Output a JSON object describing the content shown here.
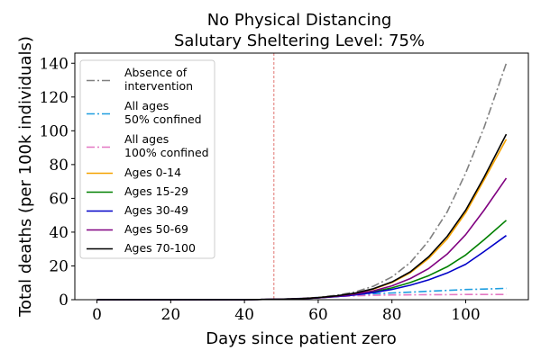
{
  "chart_data": {
    "type": "line",
    "title": [
      "No Physical Distancing",
      "Salutary Sheltering Level: 75%"
    ],
    "xlabel": "Days since patient zero",
    "ylabel": "Total deaths (per 100k individuals)",
    "xlim": [
      -6,
      117
    ],
    "ylim": [
      0,
      146
    ],
    "xticks": [
      0,
      20,
      40,
      60,
      80,
      100
    ],
    "yticks": [
      0,
      20,
      40,
      60,
      80,
      100,
      120,
      140
    ],
    "intervention_day": 48,
    "legend_position": "upper-left",
    "grid": false,
    "x": [
      0,
      10,
      20,
      30,
      40,
      50,
      55,
      60,
      65,
      70,
      75,
      80,
      85,
      90,
      95,
      100,
      105,
      111
    ],
    "series": [
      {
        "name": [
          "Absence of",
          "intervention"
        ],
        "color": "#808080",
        "style": "dashdot",
        "values": [
          0,
          0,
          0,
          0,
          0,
          0.3,
          0.7,
          1.4,
          2.6,
          4.6,
          8,
          13.5,
          22,
          35,
          52,
          75,
          102,
          140
        ]
      },
      {
        "name": [
          "All ages",
          "50% confined"
        ],
        "color": "#1f9ee0",
        "style": "dashdot",
        "values": [
          0,
          0,
          0,
          0,
          0,
          0.3,
          0.7,
          1.3,
          2.1,
          2.9,
          3.5,
          4,
          4.5,
          5,
          5.5,
          6,
          6.3,
          6.7
        ]
      },
      {
        "name": [
          "All ages",
          "100% confined"
        ],
        "color": "#e377c2",
        "style": "dashdot",
        "values": [
          0,
          0,
          0,
          0,
          0,
          0.3,
          0.7,
          1.2,
          1.8,
          2.3,
          2.6,
          2.8,
          2.9,
          3,
          3,
          3.1,
          3.1,
          3.1
        ]
      },
      {
        "name": [
          "Ages 0-14"
        ],
        "color": "#f5a300",
        "style": "solid",
        "values": [
          0,
          0,
          0,
          0,
          0,
          0.3,
          0.6,
          1.2,
          2.2,
          3.8,
          6.3,
          10.2,
          16,
          24.5,
          36,
          51.5,
          71,
          95
        ]
      },
      {
        "name": [
          "Ages 15-29"
        ],
        "color": "#008000",
        "style": "solid",
        "values": [
          0,
          0,
          0,
          0,
          0,
          0.3,
          0.6,
          1.1,
          1.9,
          3.1,
          4.7,
          7,
          10.2,
          14.3,
          19.5,
          26.5,
          35.5,
          47
        ]
      },
      {
        "name": [
          "Ages 30-49"
        ],
        "color": "#0000c8",
        "style": "solid",
        "values": [
          0,
          0,
          0,
          0,
          0,
          0.3,
          0.6,
          1.1,
          1.8,
          2.8,
          4.2,
          6.1,
          8.6,
          11.8,
          15.8,
          21,
          28.5,
          38
        ]
      },
      {
        "name": [
          "Ages 50-69"
        ],
        "color": "#800080",
        "style": "solid",
        "values": [
          0,
          0,
          0,
          0,
          0,
          0.3,
          0.6,
          1.1,
          2,
          3.3,
          5.3,
          8.2,
          12.5,
          18.5,
          27,
          38.5,
          53,
          72
        ]
      },
      {
        "name": [
          "Ages 70-100"
        ],
        "color": "#000000",
        "style": "solid",
        "values": [
          0,
          0,
          0,
          0,
          0,
          0.3,
          0.6,
          1.2,
          2.3,
          3.9,
          6.5,
          10.5,
          16.5,
          25.5,
          37.5,
          53,
          72.5,
          98
        ]
      }
    ]
  }
}
